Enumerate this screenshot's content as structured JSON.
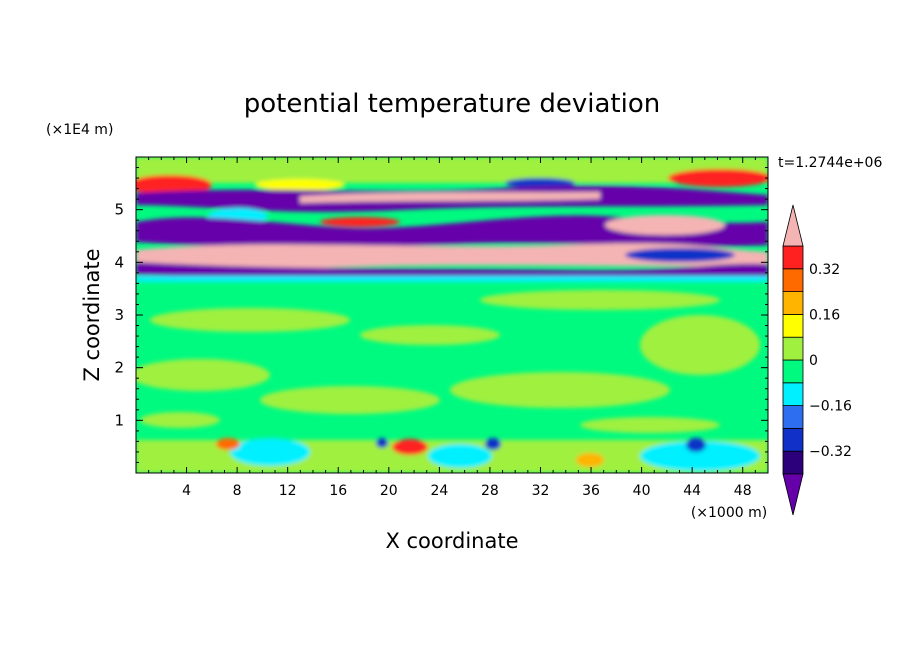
{
  "chart_data": {
    "type": "heatmap",
    "title": "potential temperature deviation",
    "xlabel": "X coordinate",
    "ylabel": "Z coordinate",
    "x_unit": "(×1000 m)",
    "y_unit": "(×1E4 m)",
    "time_label": "t=1.2744e+06",
    "xlim": [
      0,
      50
    ],
    "ylim": [
      0,
      6
    ],
    "x_ticks": [
      4,
      8,
      12,
      16,
      20,
      24,
      28,
      32,
      36,
      40,
      44,
      48
    ],
    "y_ticks": [
      1,
      2,
      3,
      4,
      5
    ],
    "x_tick_labels": [
      "4",
      "8",
      "12",
      "16",
      "20",
      "24",
      "28",
      "32",
      "36",
      "40",
      "44",
      "48"
    ],
    "y_tick_labels": [
      "1",
      "2",
      "3",
      "4",
      "5"
    ],
    "colorbar": {
      "levels": [
        -0.4,
        -0.32,
        -0.24,
        -0.16,
        -0.08,
        0,
        0.08,
        0.16,
        0.24,
        0.32,
        0.4
      ],
      "tick_values": [
        0.32,
        0.16,
        0,
        -0.16,
        -0.32
      ],
      "tick_labels": [
        "0.32",
        "0.16",
        "0",
        "−0.16",
        "−0.32"
      ],
      "colors": [
        "#2b007a",
        "#1030c8",
        "#2d6ef0",
        "#00f0ff",
        "#00fa80",
        "#a0f040",
        "#ffff00",
        "#ffb400",
        "#ff6a00",
        "#ff2020"
      ],
      "over_color": "#f5b4b4",
      "under_color": "#6600aa"
    },
    "field_bands": [
      {
        "z_range": [
          0.0,
          0.6
        ],
        "dominant": "mixed green/cyan with warm spots"
      },
      {
        "z_range": [
          0.6,
          3.7
        ],
        "dominant": "green/lime"
      },
      {
        "z_range": [
          3.7,
          5.6
        ],
        "dominant": "alternating purple/pink layers"
      },
      {
        "z_range": [
          5.6,
          6.0
        ],
        "dominant": "lime with red patches"
      }
    ]
  }
}
